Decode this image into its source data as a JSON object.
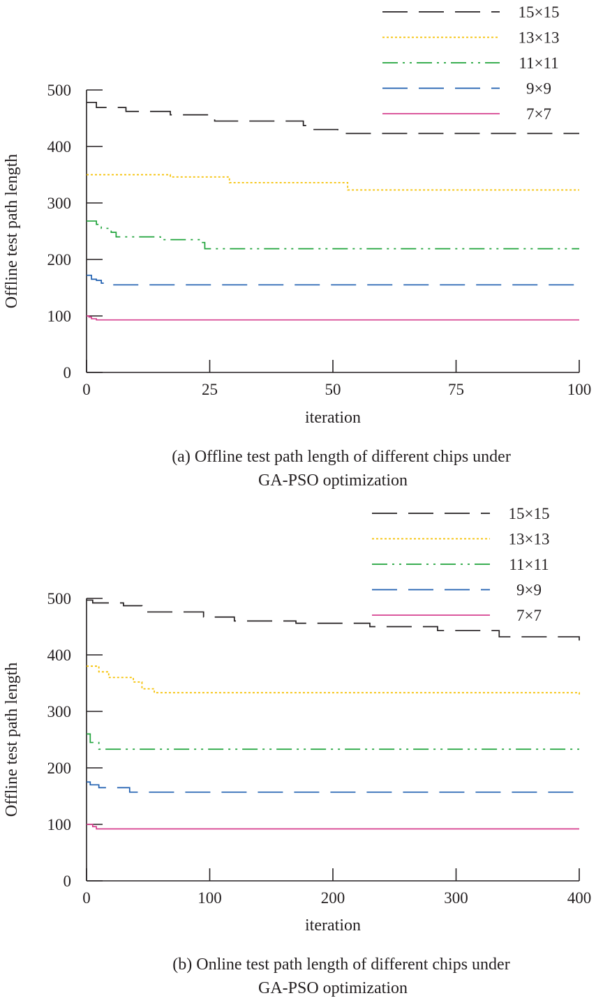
{
  "colors": {
    "15x15": "#231f20",
    "13x13": "#f5c000",
    "11x11": "#1fa33a",
    "9x9": "#1f5fb0",
    "7x7": "#d6408f"
  },
  "chart_data": [
    {
      "type": "line",
      "panel": "a",
      "caption_lines": [
        "(a) Offline test path length of different chips under",
        "GA-PSO optimization"
      ],
      "xlabel": "iteration",
      "ylabel": "Offline test path length",
      "xlim": [
        0,
        100
      ],
      "ylim": [
        0,
        500
      ],
      "xticks": [
        0,
        25,
        50,
        75,
        100
      ],
      "yticks": [
        0,
        100,
        200,
        300,
        400,
        500
      ],
      "grid": false,
      "legend_position": "top-right",
      "series": [
        {
          "name": "15×15",
          "color_key": "15x15",
          "dash": "long-dash",
          "step": true,
          "x": [
            0,
            1,
            2,
            7,
            8,
            17,
            25,
            26,
            42,
            44,
            45,
            50,
            51,
            100
          ],
          "y": [
            478,
            478,
            469,
            469,
            462,
            456,
            456,
            445,
            445,
            437,
            430,
            430,
            423,
            423
          ]
        },
        {
          "name": "13×13",
          "color_key": "13x13",
          "dash": "dotted",
          "step": true,
          "x": [
            0,
            17,
            29,
            52,
            53,
            100
          ],
          "y": [
            350,
            346,
            336,
            336,
            323,
            323
          ]
        },
        {
          "name": "11×11",
          "color_key": "11x11",
          "dash": "dash-dot-dot",
          "step": true,
          "x": [
            0,
            2,
            3,
            5,
            6,
            15,
            23,
            24,
            100
          ],
          "y": [
            268,
            262,
            255,
            248,
            240,
            235,
            230,
            219,
            219
          ]
        },
        {
          "name": "9×9",
          "color_key": "9x9",
          "dash": "long-dash",
          "step": true,
          "x": [
            0,
            1,
            2,
            3,
            4,
            100
          ],
          "y": [
            172,
            165,
            163,
            158,
            155,
            155
          ]
        },
        {
          "name": "7×7",
          "color_key": "7x7",
          "dash": "solid",
          "step": true,
          "x": [
            0,
            0.5,
            1,
            2,
            100
          ],
          "y": [
            100,
            98,
            95,
            93,
            93
          ]
        }
      ]
    },
    {
      "type": "line",
      "panel": "b",
      "caption_lines": [
        "(b) Online test path length of different chips under",
        "GA-PSO optimization"
      ],
      "xlabel": "iteration",
      "ylabel": "Offline test path length",
      "xlim": [
        0,
        400
      ],
      "ylim": [
        0,
        500
      ],
      "xticks": [
        0,
        100,
        200,
        300,
        400
      ],
      "yticks": [
        0,
        100,
        200,
        300,
        400,
        500
      ],
      "grid": false,
      "legend_position": "top-right",
      "series": [
        {
          "name": "15×15",
          "color_key": "15x15",
          "dash": "long-dash",
          "step": true,
          "x": [
            0,
            5,
            30,
            45,
            95,
            120,
            170,
            230,
            285,
            335,
            400
          ],
          "y": [
            497,
            492,
            487,
            476,
            467,
            460,
            456,
            450,
            443,
            432,
            423
          ]
        },
        {
          "name": "13×13",
          "color_key": "13x13",
          "dash": "dotted",
          "step": true,
          "x": [
            0,
            10,
            18,
            38,
            45,
            55,
            400
          ],
          "y": [
            380,
            370,
            360,
            352,
            340,
            333,
            330
          ]
        },
        {
          "name": "11×11",
          "color_key": "11x11",
          "dash": "dash-dot-dot",
          "step": true,
          "x": [
            0,
            3,
            10,
            400
          ],
          "y": [
            260,
            245,
            233,
            233
          ]
        },
        {
          "name": "9×9",
          "color_key": "9x9",
          "dash": "long-dash",
          "step": true,
          "x": [
            0,
            3,
            10,
            35,
            400
          ],
          "y": [
            175,
            170,
            165,
            157,
            157
          ]
        },
        {
          "name": "7×7",
          "color_key": "7x7",
          "dash": "solid",
          "step": true,
          "x": [
            0,
            5,
            8,
            400
          ],
          "y": [
            100,
            96,
            92,
            92
          ]
        }
      ]
    }
  ]
}
